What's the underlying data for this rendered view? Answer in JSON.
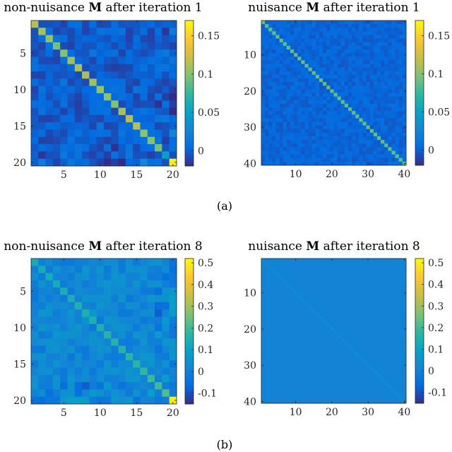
{
  "figure": {
    "label_a": "(a)",
    "label_b": "(b)"
  },
  "chart_data": [
    {
      "type": "heatmap",
      "panel": "a-left",
      "title_pre": "non-nuisance ",
      "title_bold": "M",
      "title_post": " after iteration 1",
      "n": 20,
      "xticks": [
        5,
        10,
        15,
        20
      ],
      "yticks": [
        5,
        10,
        15,
        20
      ],
      "clim": [
        -0.02,
        0.17
      ],
      "cticks": [
        0,
        0.05,
        0.1,
        0.15
      ],
      "ctick_labels": [
        "0",
        "0.05",
        "0.1",
        "0.15"
      ],
      "diag": [
        0.115,
        0.11,
        0.105,
        0.095,
        0.1,
        0.108,
        0.112,
        0.11,
        0.108,
        0.105,
        0.103,
        0.1,
        0.11,
        0.115,
        0.115,
        0.102,
        0.1,
        0.095,
        0.05,
        0.165
      ],
      "offdiag_mean": 0.0,
      "offdiag_spread": 0.012,
      "seed": 11
    },
    {
      "type": "heatmap",
      "panel": "a-right",
      "title_pre": "nuisance ",
      "title_bold": "M",
      "title_post": " after iteration 1",
      "n": 40,
      "xticks": [
        10,
        20,
        30,
        40
      ],
      "yticks": [
        10,
        20,
        30,
        40
      ],
      "clim": [
        -0.02,
        0.17
      ],
      "cticks": [
        0,
        0.05,
        0.1,
        0.15
      ],
      "ctick_labels": [
        "0",
        "0.05",
        "0.1",
        "0.15"
      ],
      "diag_value": 0.09,
      "offdiag_mean": 0.002,
      "offdiag_spread": 0.006,
      "seed": 23
    },
    {
      "type": "heatmap",
      "panel": "b-left",
      "title_pre": "non-nuisance ",
      "title_bold": "M",
      "title_post": " after iteration 8",
      "n": 20,
      "xticks": [
        5,
        10,
        15,
        20
      ],
      "yticks": [
        5,
        10,
        15,
        20
      ],
      "clim": [
        -0.15,
        0.52
      ],
      "cticks": [
        -0.1,
        0,
        0.1,
        0.2,
        0.3,
        0.4,
        0.5
      ],
      "ctick_labels": [
        "-0.1",
        "0",
        "0.1",
        "0.2",
        "0.3",
        "0.4",
        "0.5"
      ],
      "diag": [
        0.13,
        0.13,
        0.13,
        0.13,
        0.14,
        0.14,
        0.15,
        0.15,
        0.15,
        0.15,
        0.16,
        0.16,
        0.16,
        0.17,
        0.17,
        0.18,
        0.19,
        0.2,
        0.22,
        0.5
      ],
      "offdiag_mean": 0.02,
      "offdiag_spread": 0.045,
      "seed": 37
    },
    {
      "type": "heatmap",
      "panel": "b-right",
      "title_pre": "nuisance ",
      "title_bold": "M",
      "title_post": " after iteration 8",
      "n": 40,
      "xticks": [
        10,
        20,
        30,
        40
      ],
      "yticks": [
        10,
        20,
        30,
        40
      ],
      "clim": [
        -0.15,
        0.52
      ],
      "cticks": [
        -0.1,
        0,
        0.1,
        0.2,
        0.3,
        0.4,
        0.5
      ],
      "ctick_labels": [
        "-0.1",
        "0",
        "0.1",
        "0.2",
        "0.3",
        "0.4",
        "0.5"
      ],
      "diag_value": 0.03,
      "offdiag_mean": 0.012,
      "offdiag_spread": 0.0,
      "seed": 41
    }
  ]
}
